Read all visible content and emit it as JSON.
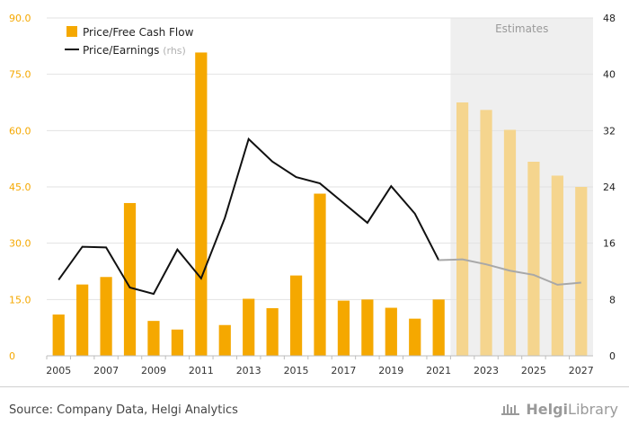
{
  "chart_data": {
    "type": "bar",
    "x": [
      2005,
      2006,
      2007,
      2008,
      2009,
      2010,
      2011,
      2012,
      2013,
      2014,
      2015,
      2016,
      2017,
      2018,
      2019,
      2020,
      2021,
      2022,
      2023,
      2024,
      2025,
      2026,
      2027
    ],
    "x_tick_labels": [
      "2005",
      "2007",
      "2009",
      "2011",
      "2013",
      "2015",
      "2017",
      "2019",
      "2021",
      "2023",
      "2025",
      "2027"
    ],
    "series": [
      {
        "name": "Price/Free Cash Flow",
        "axis": "left",
        "type": "bar",
        "color": "#F5A800",
        "estimate_color": "#F5D58E",
        "values": [
          11.0,
          19.0,
          21.0,
          40.7,
          9.3,
          7.0,
          80.8,
          8.2,
          15.2,
          12.7,
          21.4,
          43.2,
          14.7,
          15.0,
          12.8,
          9.9,
          15.0,
          67.5,
          65.5,
          60.2,
          51.7,
          48.0,
          45.0
        ]
      },
      {
        "name": "Price/Earnings",
        "name_suffix": "(rhs)",
        "axis": "right",
        "type": "line",
        "color": "#111111",
        "estimate_color": "#A8A8A8",
        "values": [
          10.8,
          15.5,
          15.4,
          9.7,
          8.8,
          15.1,
          11.0,
          19.6,
          30.8,
          27.6,
          25.4,
          24.5,
          21.7,
          18.9,
          24.1,
          20.2,
          13.6,
          13.7,
          13.0,
          12.1,
          11.5,
          10.1,
          10.4
        ]
      }
    ],
    "estimates_start": 2022,
    "estimates_label": "Estimates",
    "estimates_shade": "#EFEFEF",
    "left_axis": {
      "ylim": [
        0,
        90
      ],
      "ticks": [
        "0",
        "15.0",
        "30.0",
        "45.0",
        "60.0",
        "75.0",
        "90.0"
      ],
      "color": "#F5A800"
    },
    "right_axis": {
      "ylim": [
        0,
        48
      ],
      "ticks": [
        "0",
        "8",
        "16",
        "24",
        "32",
        "40",
        "48"
      ],
      "color": "#222222"
    },
    "grid": true,
    "legend_position": "top-left"
  },
  "footer": {
    "source": "Source: Company Data, Helgi Analytics",
    "brand_word1": "Helgi",
    "brand_word2": "Library"
  }
}
